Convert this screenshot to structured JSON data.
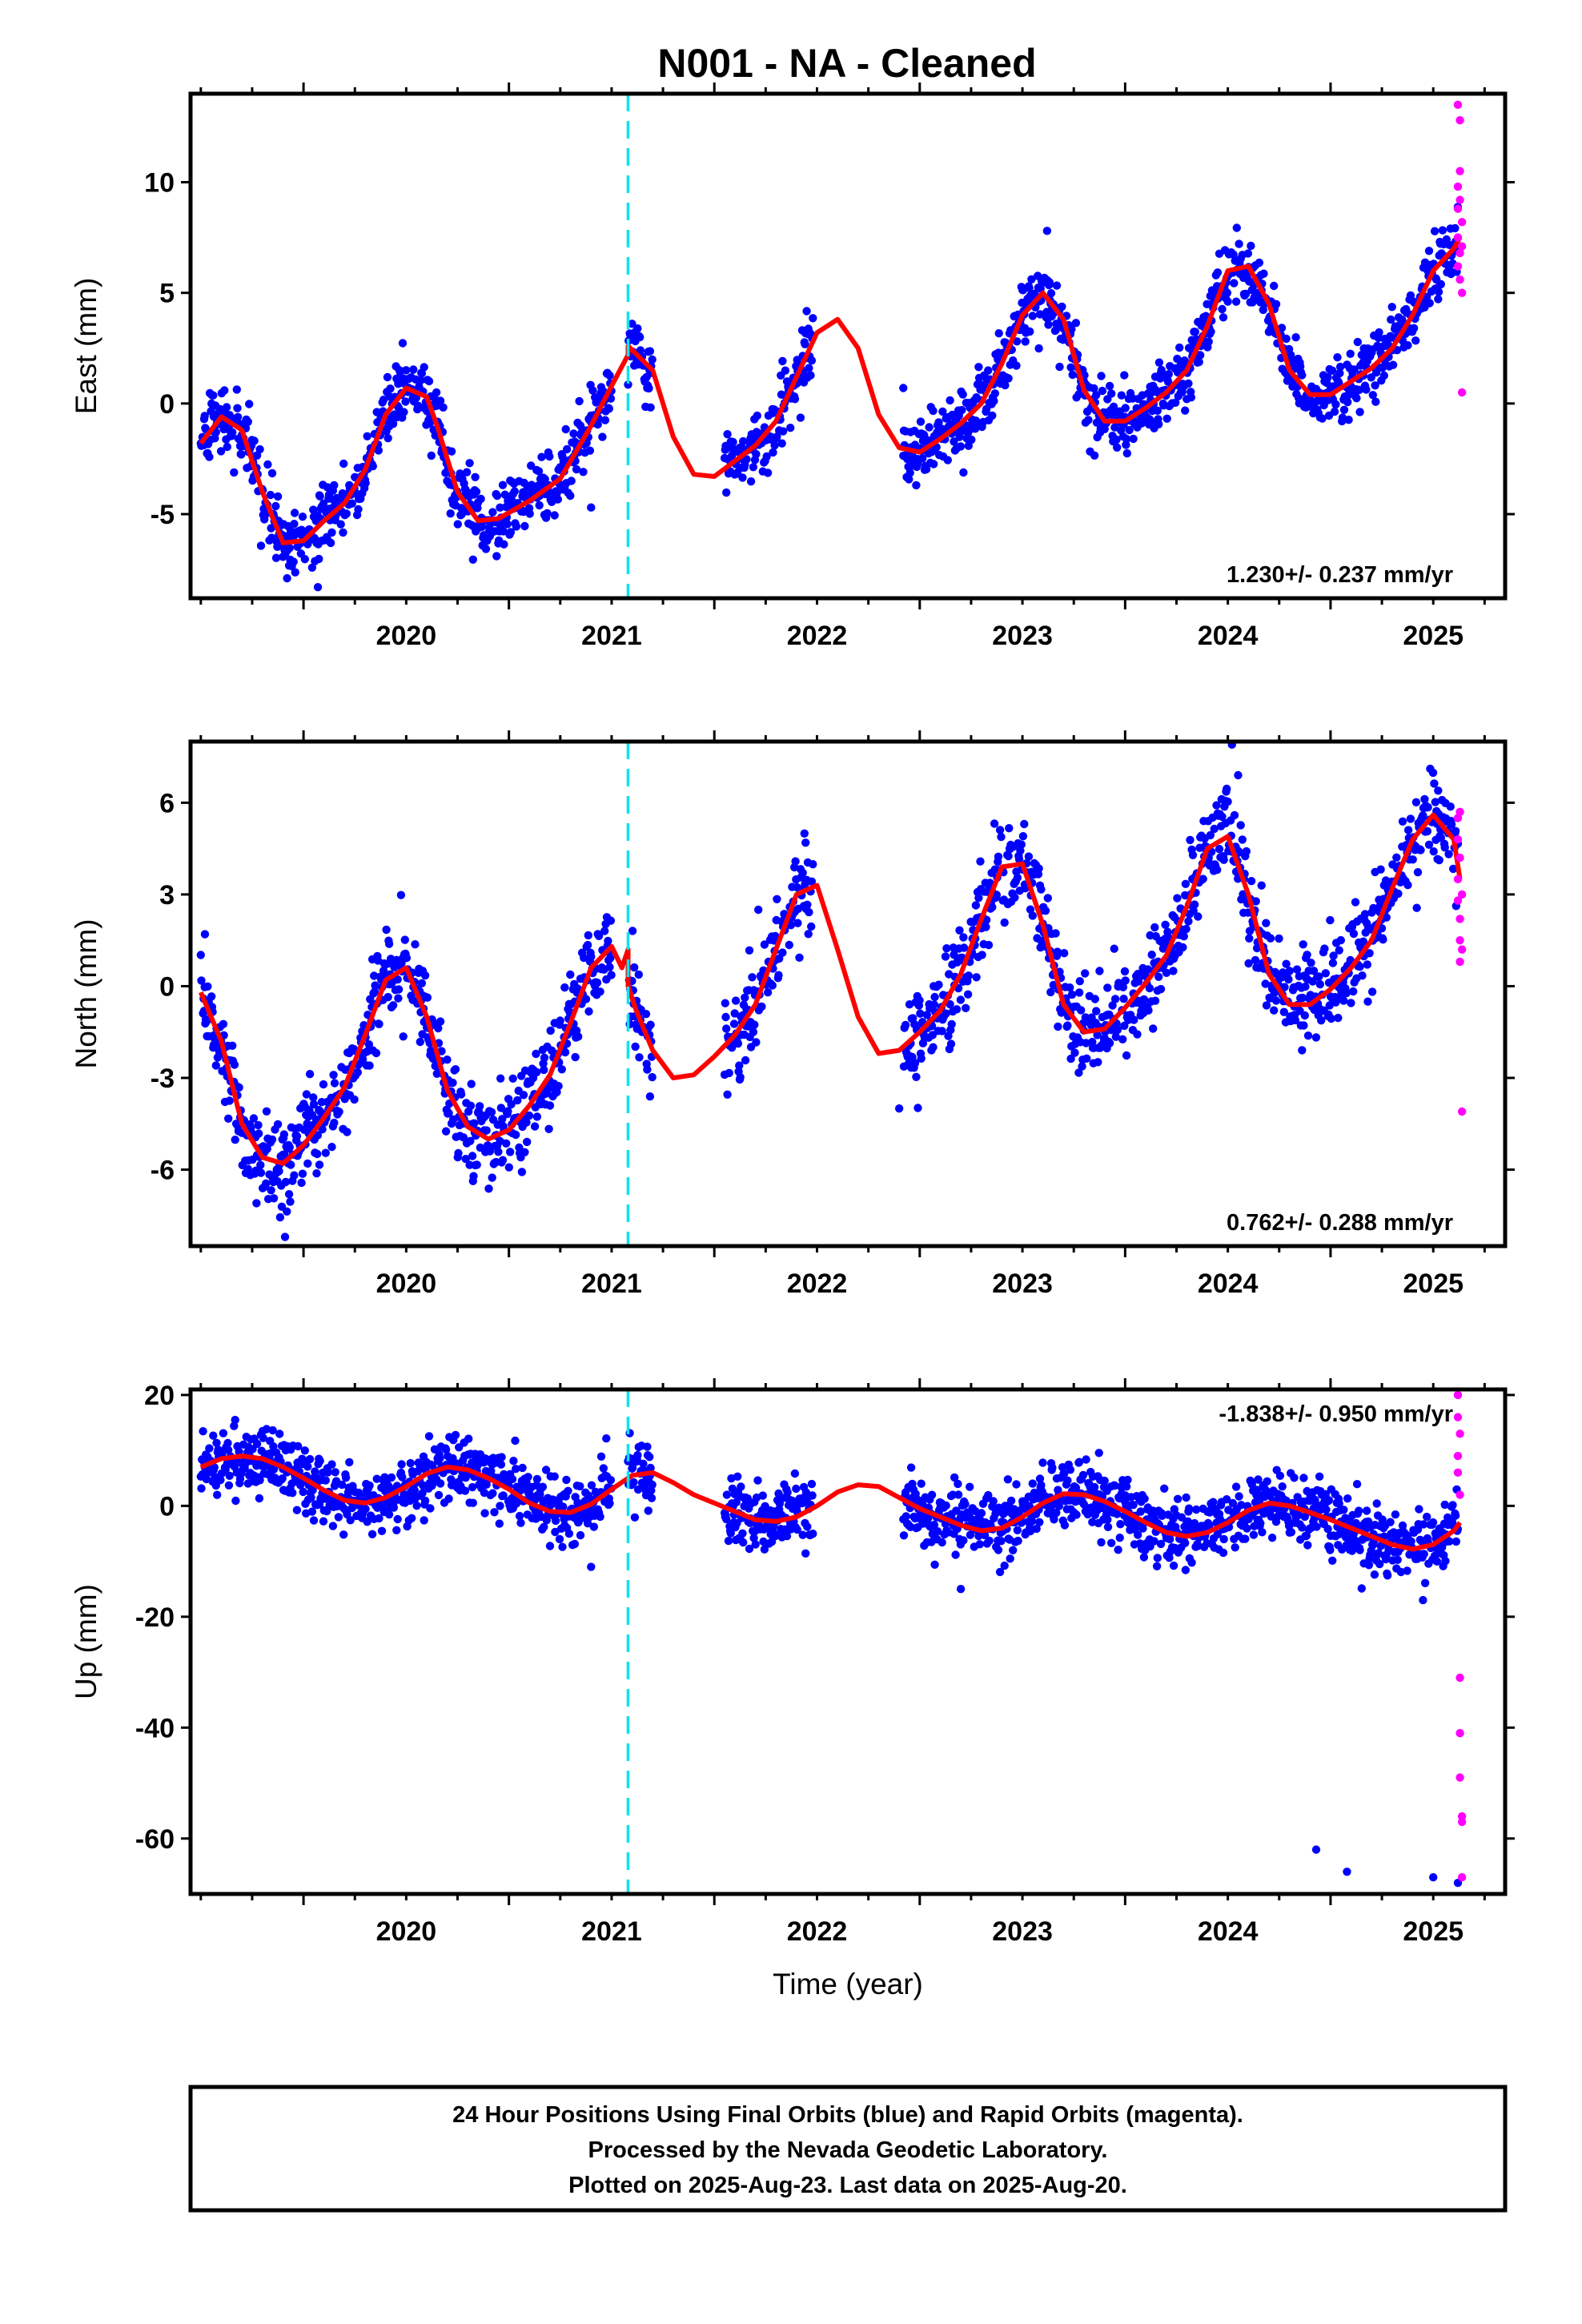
{
  "page": {
    "title": "N001  - NA - Cleaned"
  },
  "colors": {
    "final_points": "#0000ff",
    "rapid_points": "#ff00ff",
    "model": "#ff0000",
    "equipment_change": "#00e5ee",
    "frame": "#000000"
  },
  "chart_data": [
    {
      "type": "scatter",
      "panel": "east",
      "ylabel": "East (mm)",
      "xlabel": "",
      "xlim": [
        2019.45,
        2025.85
      ],
      "ylim": [
        -8.8,
        14.0
      ],
      "yticks": [
        10,
        5,
        0,
        -5
      ],
      "ytick_labels": [
        "10",
        "5",
        "0",
        "-5"
      ],
      "xticks": [
        2020,
        2021,
        2022,
        2023,
        2024,
        2025
      ],
      "xtick_labels": [
        "2020",
        "2021",
        "2022",
        "2023",
        "2024",
        "2025"
      ],
      "rate_label": "1.230+/- 0.237 mm/yr",
      "rate_position": "bottom-right",
      "equipment_change_year": 2021.58,
      "model": {
        "x": [
          2019.5,
          2019.6,
          2019.7,
          2019.8,
          2019.9,
          2020.0,
          2020.1,
          2020.2,
          2020.3,
          2020.4,
          2020.5,
          2020.6,
          2020.65,
          2020.75,
          2020.85,
          2020.95,
          2021.1,
          2021.25,
          2021.4,
          2021.5,
          2021.58,
          2021.58,
          2021.7,
          2021.8,
          2021.9,
          2022.0,
          2022.1,
          2022.2,
          2022.3,
          2022.4,
          2022.5,
          2022.6,
          2022.7,
          2022.8,
          2022.9,
          2023.0,
          2023.1,
          2023.2,
          2023.3,
          2023.4,
          2023.5,
          2023.6,
          2023.7,
          2023.8,
          2023.9,
          2024.0,
          2024.1,
          2024.2,
          2024.3,
          2024.4,
          2024.5,
          2024.6,
          2024.7,
          2024.8,
          2024.9,
          2025.0,
          2025.1,
          2025.2,
          2025.3,
          2025.4,
          2025.5,
          2025.6,
          2025.63
        ],
        "y": [
          -1.8,
          -0.6,
          -1.2,
          -4.0,
          -6.3,
          -6.2,
          -5.3,
          -4.5,
          -3.0,
          -0.5,
          0.7,
          0.3,
          -1.0,
          -4.0,
          -5.3,
          -5.2,
          -4.4,
          -3.4,
          -1.0,
          0.8,
          2.2,
          2.6,
          1.5,
          -1.5,
          -3.2,
          -3.3,
          -2.6,
          -1.9,
          -0.8,
          1.2,
          3.2,
          3.8,
          2.5,
          -0.5,
          -2.0,
          -2.2,
          -1.6,
          -0.9,
          0.0,
          1.8,
          4.0,
          5.0,
          3.8,
          0.6,
          -0.8,
          -0.8,
          -0.2,
          0.5,
          1.5,
          3.5,
          6.0,
          6.2,
          4.5,
          1.5,
          0.4,
          0.4,
          1.0,
          1.6,
          2.5,
          4.0,
          6.0,
          7.0,
          7.5
        ]
      },
      "final_series": {
        "name": "Final Orbits",
        "segments": [
          [
            2019.5,
            2021.5
          ],
          [
            2021.58,
            2021.7
          ],
          [
            2022.05,
            2022.48
          ],
          [
            2022.92,
            2025.62
          ]
        ],
        "noise_sd": 0.75,
        "outliers": [
          [
            2019.92,
            -7.9
          ],
          [
            2020.07,
            -8.3
          ],
          [
            2021.4,
            -4.7
          ],
          [
            2022.92,
            0.7
          ],
          [
            2023.62,
            7.8
          ]
        ]
      },
      "rapid_series": {
        "name": "Rapid Orbits",
        "points": [
          [
            2025.62,
            6.2
          ],
          [
            2025.62,
            7.5
          ],
          [
            2025.62,
            8.8
          ],
          [
            2025.62,
            9.8
          ],
          [
            2025.62,
            13.5
          ],
          [
            2025.63,
            12.8
          ],
          [
            2025.63,
            10.5
          ],
          [
            2025.63,
            9.2
          ],
          [
            2025.63,
            6.8
          ],
          [
            2025.63,
            5.6
          ],
          [
            2025.64,
            8.2
          ],
          [
            2025.64,
            7.1
          ],
          [
            2025.64,
            5.0
          ],
          [
            2025.64,
            0.5
          ]
        ]
      }
    },
    {
      "type": "scatter",
      "panel": "north",
      "ylabel": "North (mm)",
      "xlabel": "",
      "xlim": [
        2019.45,
        2025.85
      ],
      "ylim": [
        -8.5,
        8.0
      ],
      "yticks": [
        6,
        3,
        0,
        -3,
        -6
      ],
      "ytick_labels": [
        "6",
        "3",
        "0",
        "-3",
        "-6"
      ],
      "xticks": [
        2020,
        2021,
        2022,
        2023,
        2024,
        2025
      ],
      "xtick_labels": [
        "2020",
        "2021",
        "2022",
        "2023",
        "2024",
        "2025"
      ],
      "rate_label": "0.762+/- 0.288 mm/yr",
      "rate_position": "bottom-right",
      "equipment_change_year": 2021.58,
      "model": {
        "x": [
          2019.5,
          2019.6,
          2019.7,
          2019.8,
          2019.9,
          2020.0,
          2020.1,
          2020.2,
          2020.3,
          2020.4,
          2020.5,
          2020.6,
          2020.7,
          2020.8,
          2020.9,
          2021.0,
          2021.1,
          2021.2,
          2021.3,
          2021.4,
          2021.5,
          2021.55,
          2021.58,
          2021.58,
          2021.62,
          2021.7,
          2021.8,
          2021.9,
          2022.0,
          2022.1,
          2022.2,
          2022.3,
          2022.4,
          2022.5,
          2022.6,
          2022.7,
          2022.8,
          2022.9,
          2023.0,
          2023.1,
          2023.2,
          2023.3,
          2023.4,
          2023.5,
          2023.6,
          2023.7,
          2023.8,
          2023.9,
          2024.0,
          2024.1,
          2024.2,
          2024.3,
          2024.4,
          2024.5,
          2024.6,
          2024.7,
          2024.8,
          2024.9,
          2025.0,
          2025.1,
          2025.2,
          2025.3,
          2025.4,
          2025.5,
          2025.6,
          2025.63
        ],
        "y": [
          -0.2,
          -1.8,
          -4.5,
          -5.6,
          -5.8,
          -5.2,
          -4.3,
          -3.3,
          -1.6,
          0.2,
          0.6,
          -1.0,
          -3.4,
          -4.6,
          -5.0,
          -4.7,
          -3.9,
          -2.9,
          -1.2,
          0.6,
          1.3,
          0.6,
          1.2,
          0.0,
          -0.8,
          -2.1,
          -3.0,
          -2.9,
          -2.3,
          -1.6,
          -0.6,
          1.2,
          3.0,
          3.3,
          1.2,
          -1.0,
          -2.2,
          -2.1,
          -1.5,
          -0.8,
          0.4,
          2.2,
          3.9,
          4.0,
          2.0,
          -0.6,
          -1.5,
          -1.4,
          -0.7,
          0.1,
          1.0,
          2.6,
          4.5,
          4.9,
          3.0,
          0.4,
          -0.6,
          -0.6,
          -0.1,
          0.6,
          1.5,
          3.2,
          4.8,
          5.6,
          4.8,
          3.5
        ]
      },
      "final_series": {
        "name": "Final Orbits",
        "segments": [
          [
            2019.5,
            2021.5
          ],
          [
            2021.58,
            2021.7
          ],
          [
            2022.05,
            2022.48
          ],
          [
            2022.92,
            2025.62
          ]
        ],
        "noise_sd": 0.75,
        "outliers": [
          [
            2019.52,
            1.7
          ],
          [
            2019.91,
            -8.2
          ],
          [
            2020.58,
            0.5
          ],
          [
            2024.52,
            7.9
          ],
          [
            2024.55,
            6.9
          ],
          [
            2022.9,
            -4.0
          ]
        ]
      },
      "rapid_series": {
        "name": "Rapid Orbits",
        "points": [
          [
            2025.62,
            5.5
          ],
          [
            2025.62,
            4.8
          ],
          [
            2025.62,
            3.5
          ],
          [
            2025.62,
            2.8
          ],
          [
            2025.63,
            5.7
          ],
          [
            2025.63,
            4.2
          ],
          [
            2025.63,
            2.2
          ],
          [
            2025.63,
            1.5
          ],
          [
            2025.63,
            0.8
          ],
          [
            2025.64,
            3.0
          ],
          [
            2025.64,
            1.2
          ],
          [
            2025.64,
            -4.1
          ]
        ]
      }
    },
    {
      "type": "scatter",
      "panel": "up",
      "ylabel": "Up (mm)",
      "xlabel": "Time (year)",
      "xlim": [
        2019.45,
        2025.85
      ],
      "ylim": [
        -70,
        21
      ],
      "yticks": [
        20,
        0,
        -20,
        -40,
        -60
      ],
      "ytick_labels": [
        "20",
        "0",
        "-20",
        "-40",
        "-60"
      ],
      "xticks": [
        2020,
        2021,
        2022,
        2023,
        2024,
        2025
      ],
      "xtick_labels": [
        "2020",
        "2021",
        "2022",
        "2023",
        "2024",
        "2025"
      ],
      "rate_label": "-1.838+/- 0.950 mm/yr",
      "rate_position": "top-right",
      "equipment_change_year": 2021.58,
      "model": {
        "x": [
          2019.5,
          2019.6,
          2019.7,
          2019.8,
          2019.9,
          2020.0,
          2020.1,
          2020.2,
          2020.3,
          2020.4,
          2020.5,
          2020.6,
          2020.7,
          2020.8,
          2020.9,
          2021.0,
          2021.1,
          2021.2,
          2021.3,
          2021.4,
          2021.5,
          2021.6,
          2021.7,
          2021.8,
          2021.9,
          2022.0,
          2022.1,
          2022.2,
          2022.3,
          2022.4,
          2022.5,
          2022.6,
          2022.7,
          2022.8,
          2022.9,
          2023.0,
          2023.1,
          2023.2,
          2023.3,
          2023.4,
          2023.5,
          2023.6,
          2023.7,
          2023.8,
          2023.9,
          2024.0,
          2024.1,
          2024.2,
          2024.3,
          2024.4,
          2024.5,
          2024.6,
          2024.7,
          2024.8,
          2024.9,
          2025.0,
          2025.1,
          2025.2,
          2025.3,
          2025.4,
          2025.5,
          2025.6,
          2025.63
        ],
        "y": [
          7.0,
          8.5,
          9.0,
          8.5,
          7.0,
          5.0,
          2.8,
          1.0,
          0.5,
          1.5,
          3.5,
          5.8,
          7.0,
          6.5,
          5.0,
          3.0,
          0.5,
          -1.0,
          -1.2,
          0.3,
          3.0,
          5.5,
          6.0,
          4.2,
          2.0,
          0.5,
          -1.0,
          -2.5,
          -2.8,
          -2.0,
          0.0,
          2.5,
          3.8,
          3.5,
          1.5,
          -0.5,
          -2.0,
          -3.5,
          -4.5,
          -4.0,
          -2.0,
          0.5,
          2.2,
          2.0,
          0.8,
          -1.0,
          -3.0,
          -4.8,
          -5.5,
          -4.8,
          -3.0,
          -0.8,
          0.5,
          0.0,
          -1.2,
          -2.5,
          -4.0,
          -5.5,
          -7.0,
          -7.8,
          -7.0,
          -4.5,
          -3.0
        ]
      },
      "final_series": {
        "name": "Final Orbits",
        "segments": [
          [
            2019.5,
            2021.5
          ],
          [
            2021.58,
            2021.7
          ],
          [
            2022.05,
            2022.48
          ],
          [
            2022.92,
            2025.62
          ]
        ],
        "noise_sd": 3.0,
        "outliers": [
          [
            2024.93,
            -62
          ],
          [
            2025.08,
            -66
          ],
          [
            2025.5,
            -67
          ],
          [
            2025.62,
            -68
          ],
          [
            2021.4,
            -11
          ],
          [
            2023.2,
            -15
          ],
          [
            2025.45,
            -17
          ]
        ]
      },
      "rapid_series": {
        "name": "Rapid Orbits",
        "points": [
          [
            2025.62,
            20
          ],
          [
            2025.62,
            16
          ],
          [
            2025.62,
            9
          ],
          [
            2025.62,
            6
          ],
          [
            2025.63,
            13
          ],
          [
            2025.63,
            2
          ],
          [
            2025.63,
            -31
          ],
          [
            2025.63,
            -41
          ],
          [
            2025.63,
            -49
          ],
          [
            2025.64,
            -56
          ],
          [
            2025.64,
            -57
          ],
          [
            2025.64,
            -67
          ]
        ]
      }
    }
  ],
  "caption": {
    "line1": "24 Hour Positions Using Final Orbits (blue) and Rapid Orbits (magenta).",
    "line2": "Processed by the Nevada Geodetic Laboratory.",
    "line3": "Plotted on 2025-Aug-23. Last data on 2025-Aug-20."
  }
}
